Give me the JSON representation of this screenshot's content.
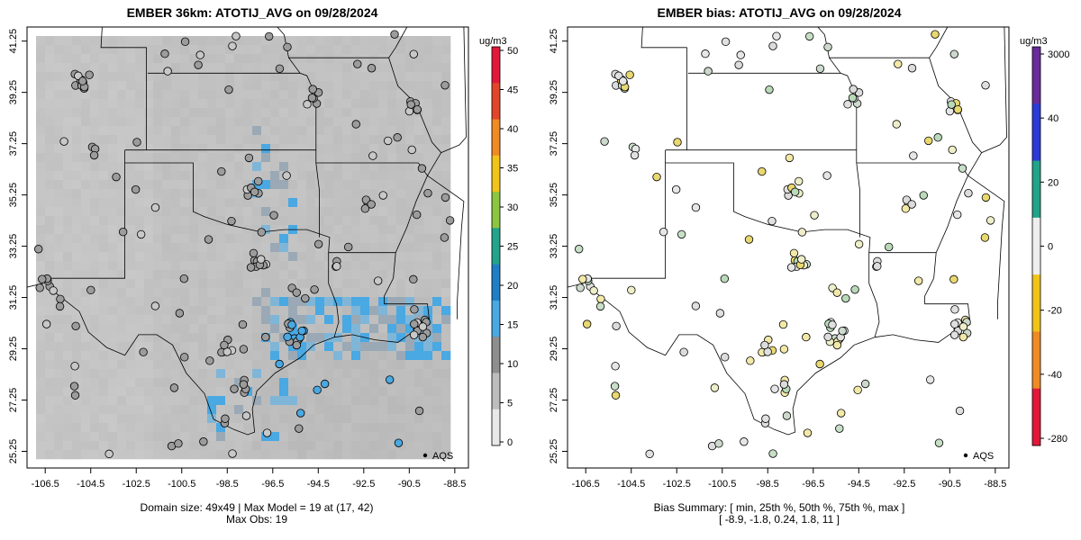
{
  "panels": [
    {
      "title": "EMBER 36km: ATOTIJ_AVG on 09/28/2024",
      "summary_line1": "Domain size: 49x49 | Max Model = 19 at (17, 42)",
      "summary_line2": "Max Obs: 19",
      "legend_label": "AQS",
      "colorbar": {
        "unit": "ug/m3",
        "ticks": [
          "0",
          "5",
          "10",
          "15",
          "20",
          "25",
          "30",
          "35",
          "40",
          "45",
          "50"
        ],
        "colors": [
          "#e8e8e8",
          "#bdbdbd",
          "#8e8e8e",
          "#4aa8e2",
          "#1f7fc6",
          "#22a38a",
          "#8cc63f",
          "#f0c419",
          "#f08a24",
          "#e2462a",
          "#e2183a"
        ]
      }
    },
    {
      "title": "EMBER bias: ATOTIJ_AVG on 09/28/2024",
      "summary_line1": "Bias Summary: [ min, 25th %, 50th %, 75th %, max ]",
      "summary_line2": "[ -8.9,   -1.8,   0.24,   1.8,   11 ]",
      "legend_label": "AQS",
      "colorbar": {
        "unit": "ug/m3",
        "ticks": [
          "3000",
          "40",
          "20",
          "0",
          "-20",
          "-40",
          "-280"
        ],
        "colors": [
          "#e2183a",
          "#f08a24",
          "#f0c419",
          "#eeeeee",
          "#22a38a",
          "#2a3bd6",
          "#6a2a9a"
        ]
      }
    }
  ],
  "axes": {
    "x_ticks": [
      "-106.5",
      "-104.5",
      "-102.5",
      "-100.5",
      "-98.5",
      "-96.5",
      "-94.5",
      "-92.5",
      "-90.5",
      "-88.5"
    ],
    "y_ticks": [
      "41.25",
      "39.25",
      "37.25",
      "35.25",
      "33.25",
      "31.25",
      "29.25",
      "27.25",
      "25.25"
    ]
  }
}
